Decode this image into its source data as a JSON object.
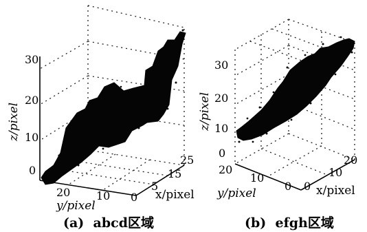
{
  "chart_data": [
    {
      "type": "scatter",
      "subtype": "3d-surface-point-cloud",
      "caption_tag": "(a)",
      "caption_text": "abcd区域",
      "xlabel": "x/pixel",
      "ylabel": "y/pixel",
      "zlabel": "z/pixel",
      "x_ticks": [
        "0",
        "5",
        "15",
        "25"
      ],
      "y_ticks": [
        "0",
        "10",
        "20"
      ],
      "z_ticks": [
        "0",
        "10",
        "20",
        "30"
      ],
      "x_range": [
        0,
        26
      ],
      "y_range": [
        0,
        26
      ],
      "z_range": [
        0,
        37
      ],
      "grid": true,
      "color": "#050505",
      "z_profile": [
        {
          "y": 25,
          "z": 0
        },
        {
          "y": 20,
          "z": 5
        },
        {
          "y": 16,
          "z": 10
        },
        {
          "y": 12,
          "z": 12
        },
        {
          "y": 9,
          "z": 20
        },
        {
          "y": 6,
          "z": 21
        },
        {
          "y": 4,
          "z": 27
        },
        {
          "y": 2,
          "z": 32
        },
        {
          "y": 0,
          "z": 34
        }
      ]
    },
    {
      "type": "scatter",
      "subtype": "3d-surface-point-cloud",
      "caption_tag": "(b)",
      "caption_text": "efgh区域",
      "xlabel": "x/pixel",
      "ylabel": "y/pixel",
      "zlabel": "z/pixel",
      "x_ticks": [
        "0",
        "10",
        "20"
      ],
      "y_ticks": [
        "0",
        "10",
        "20"
      ],
      "z_ticks": [
        "0",
        "10",
        "20",
        "30"
      ],
      "x_range": [
        0,
        25
      ],
      "y_range": [
        0,
        25
      ],
      "z_range": [
        0,
        37
      ],
      "grid": true,
      "color": "#050505",
      "z_profile": [
        {
          "y": 22,
          "z": 4
        },
        {
          "y": 16,
          "z": 12
        },
        {
          "y": 11,
          "z": 18
        },
        {
          "y": 6,
          "z": 25
        },
        {
          "y": 2,
          "z": 31
        },
        {
          "y": 0,
          "z": 33
        }
      ]
    }
  ]
}
